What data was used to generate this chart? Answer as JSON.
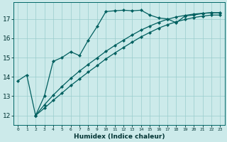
{
  "xlabel": "Humidex (Indice chaleur)",
  "bg_color": "#cceaea",
  "line_color": "#005f5f",
  "grid_color": "#99cccc",
  "xlim": [
    -0.5,
    23.5
  ],
  "ylim": [
    11.5,
    17.85
  ],
  "yticks": [
    12,
    13,
    14,
    15,
    16,
    17
  ],
  "xticks": [
    0,
    1,
    2,
    3,
    4,
    5,
    6,
    7,
    8,
    9,
    10,
    11,
    12,
    13,
    14,
    15,
    16,
    17,
    18,
    19,
    20,
    21,
    22,
    23
  ],
  "line_jagged_x": [
    0,
    1,
    2,
    3,
    4,
    5,
    6,
    7,
    8,
    9,
    10,
    11,
    12,
    13,
    14,
    15,
    16,
    17,
    18,
    19,
    20,
    21,
    22,
    23
  ],
  "line_jagged_y": [
    13.8,
    14.1,
    12.0,
    13.0,
    14.8,
    15.0,
    15.3,
    15.1,
    15.9,
    16.6,
    17.38,
    17.42,
    17.45,
    17.42,
    17.45,
    17.2,
    17.05,
    17.0,
    16.8,
    17.15,
    17.2,
    17.28,
    17.32,
    17.32
  ],
  "line_diag1_x": [
    2,
    3,
    4,
    5,
    6,
    7,
    8,
    9,
    10,
    11,
    12,
    13,
    14,
    15,
    16,
    17,
    18,
    19,
    20,
    21,
    22,
    23
  ],
  "line_diag1_y": [
    12.0,
    12.55,
    13.05,
    13.5,
    13.92,
    14.3,
    14.65,
    14.98,
    15.32,
    15.62,
    15.9,
    16.17,
    16.42,
    16.63,
    16.82,
    16.98,
    17.1,
    17.18,
    17.25,
    17.29,
    17.32,
    17.32
  ],
  "line_diag2_x": [
    2,
    3,
    4,
    5,
    6,
    7,
    8,
    9,
    10,
    11,
    12,
    13,
    14,
    15,
    16,
    17,
    18,
    19,
    20,
    21,
    22,
    23
  ],
  "line_diag2_y": [
    12.0,
    12.38,
    12.78,
    13.16,
    13.55,
    13.9,
    14.25,
    14.58,
    14.93,
    15.23,
    15.52,
    15.8,
    16.07,
    16.3,
    16.52,
    16.7,
    16.85,
    16.97,
    17.07,
    17.14,
    17.2,
    17.2
  ]
}
